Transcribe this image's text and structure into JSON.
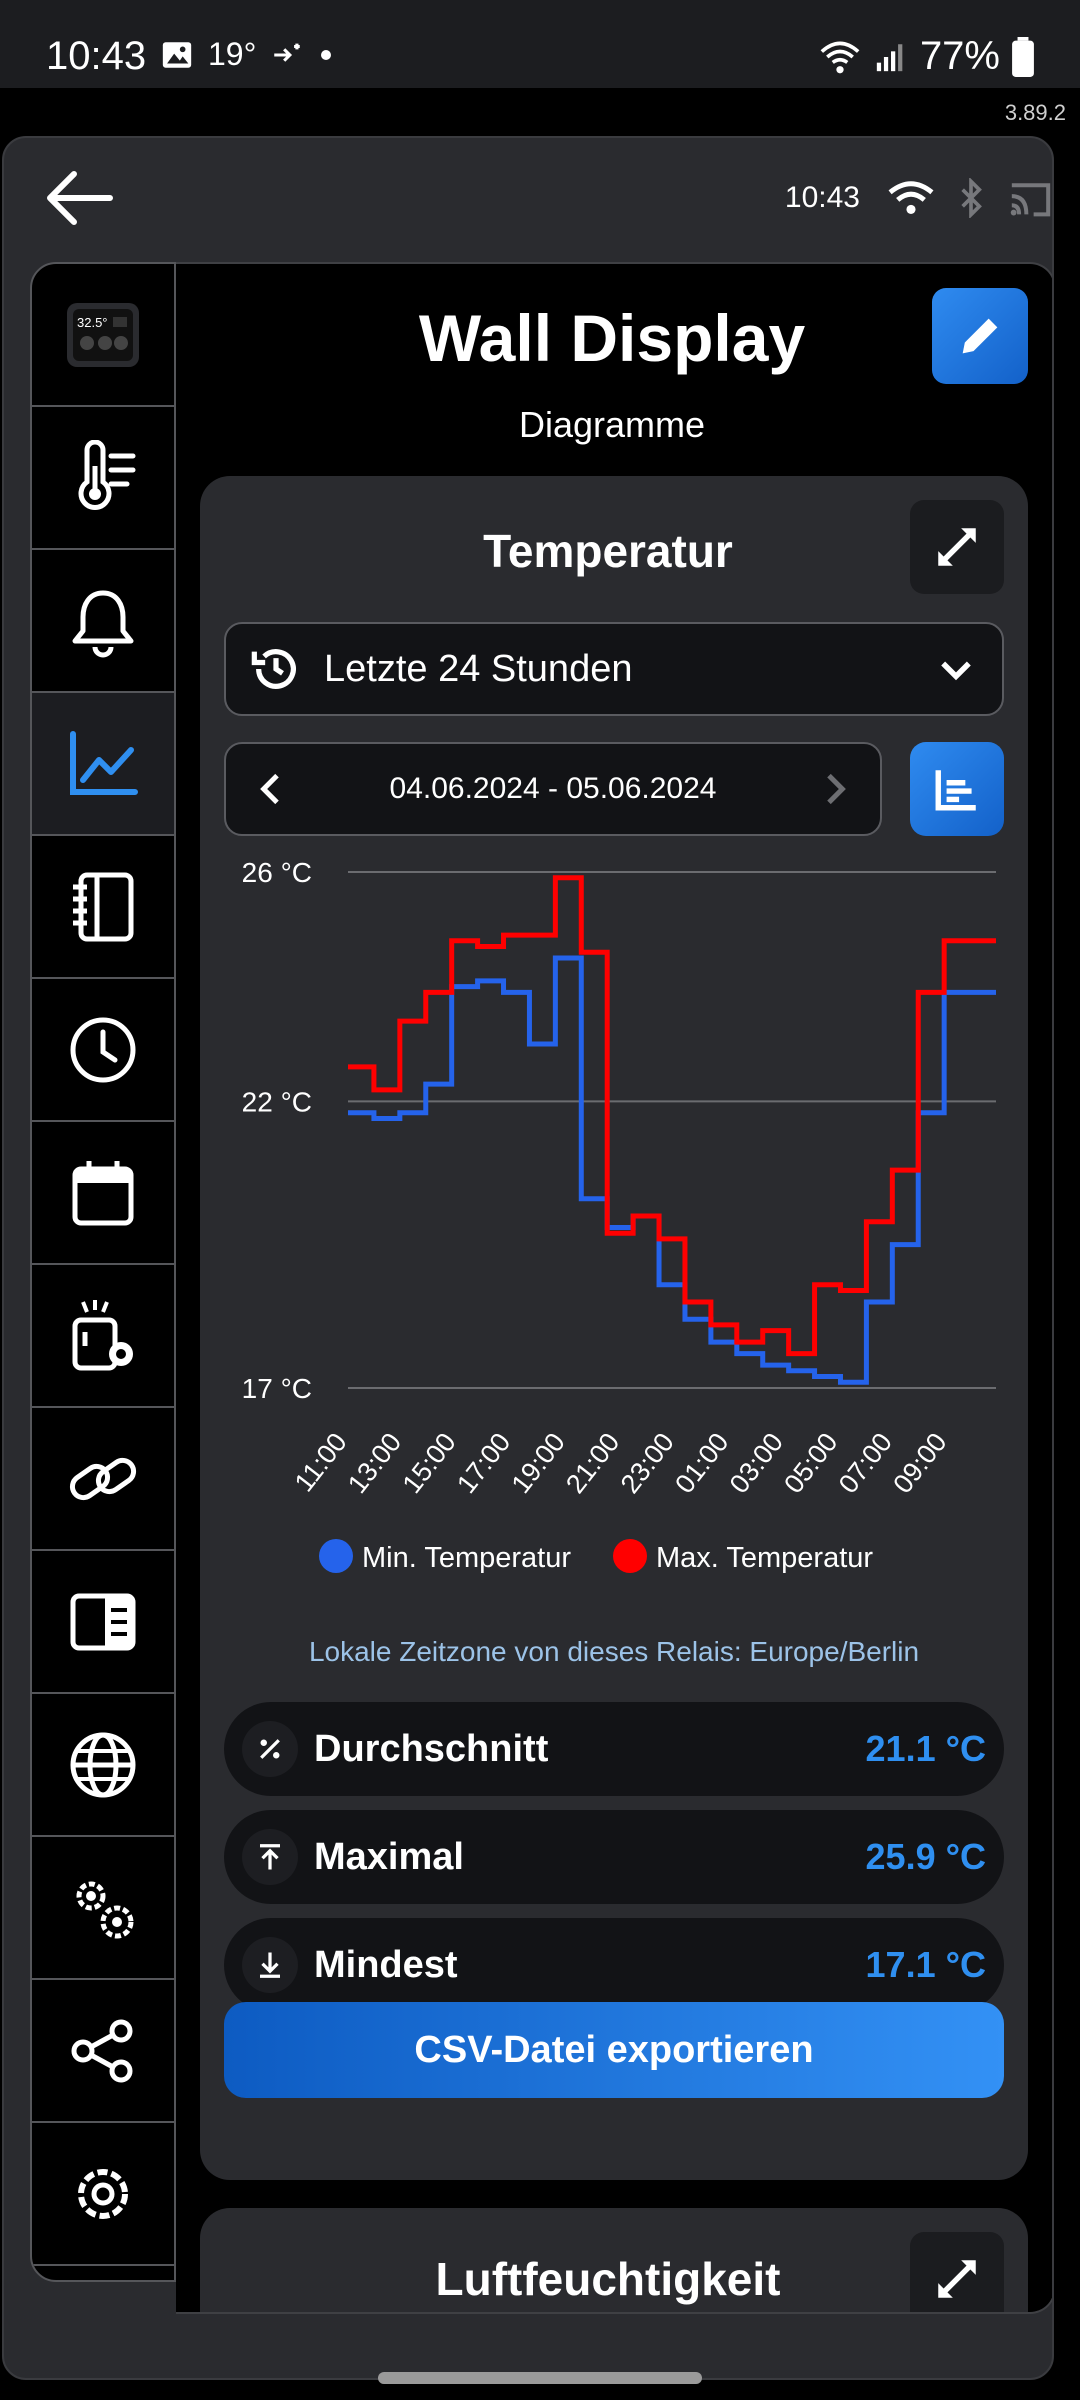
{
  "status_bar": {
    "time": "10:43",
    "temp": "19°",
    "battery": "77%"
  },
  "version": "3.89.2",
  "top_bar": {
    "time": "10:43"
  },
  "sidebar": {
    "items": [
      {
        "icon": "device-thumbnail-icon",
        "thumb_text": "32.5°"
      },
      {
        "icon": "thermometer-list-icon"
      },
      {
        "icon": "bell-icon"
      },
      {
        "icon": "chart-line-icon",
        "active": true
      },
      {
        "icon": "notebook-icon"
      },
      {
        "icon": "clock-icon"
      },
      {
        "icon": "calendar-icon"
      },
      {
        "icon": "device-settings-icon"
      },
      {
        "icon": "link-icon"
      },
      {
        "icon": "display-layout-icon"
      },
      {
        "icon": "globe-icon"
      },
      {
        "icon": "cogs-icon"
      },
      {
        "icon": "share-icon"
      },
      {
        "icon": "settings-icon"
      }
    ]
  },
  "header": {
    "title": "Wall Display",
    "subtitle": "Diagramme"
  },
  "card": {
    "title": "Temperatur",
    "range_label": "Letzte 24 Stunden",
    "date_range": "04.06.2024 - 05.06.2024",
    "timezone_note": "Lokale Zeitzone von dieses Relais: Europe/Berlin",
    "stats": [
      {
        "icon": "percent-icon",
        "name": "Durchschnitt",
        "value": "21.1 °C"
      },
      {
        "icon": "arrow-up-bar-icon",
        "name": "Maximal",
        "value": "25.9 °C"
      },
      {
        "icon": "arrow-down-bar-icon",
        "name": "Mindest",
        "value": "17.1 °C"
      }
    ],
    "export_label": "CSV-Datei exportieren"
  },
  "card2": {
    "title": "Luftfeuchtigkeit"
  },
  "colors": {
    "accent": "#2f8ff0",
    "min_series": "#2563eb",
    "max_series": "#ff0000"
  },
  "chart_data": {
    "type": "line",
    "step": true,
    "x_ticks": [
      "11:00",
      "13:00",
      "15:00",
      "17:00",
      "19:00",
      "21:00",
      "23:00",
      "01:00",
      "03:00",
      "05:00",
      "07:00",
      "09:00"
    ],
    "y_ticks": [
      "26 °C",
      "22 °C",
      "17 °C"
    ],
    "y_tick_values": [
      26,
      22,
      17
    ],
    "ylim": [
      17,
      26
    ],
    "grid": true,
    "legend": "bottom",
    "x": [
      11,
      12,
      13,
      14,
      15,
      16,
      17,
      18,
      19,
      20,
      21,
      22,
      23,
      24,
      25,
      26,
      27,
      28,
      29,
      30,
      31,
      32,
      33,
      34,
      35
    ],
    "series": [
      {
        "name": "Min. Temperatur",
        "color": "#2563eb",
        "values": [
          21.8,
          21.7,
          21.8,
          22.3,
          24.0,
          24.1,
          23.9,
          23.0,
          24.5,
          20.3,
          19.8,
          20.0,
          18.8,
          18.2,
          17.8,
          17.6,
          17.4,
          17.3,
          17.2,
          17.1,
          18.5,
          19.5,
          21.8,
          23.9,
          23.9
        ]
      },
      {
        "name": "Max. Temperatur",
        "color": "#ff0000",
        "values": [
          22.6,
          22.2,
          23.4,
          23.9,
          24.8,
          24.7,
          24.9,
          24.9,
          25.9,
          24.6,
          19.7,
          20.0,
          19.6,
          18.5,
          18.1,
          17.8,
          18.0,
          17.6,
          18.8,
          18.7,
          19.9,
          20.8,
          23.9,
          24.8,
          24.8
        ]
      }
    ]
  }
}
